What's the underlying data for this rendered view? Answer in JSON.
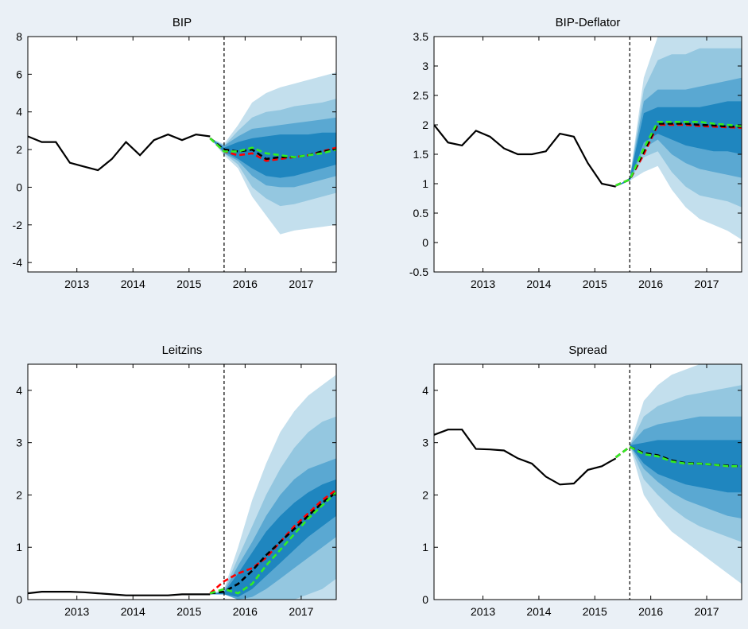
{
  "colors": {
    "fan_light": "#c3dfed",
    "fan_mid_light": "#94c7e0",
    "fan_mid": "#5aa8d2",
    "fan_dark": "#1f86bf",
    "fan_darkest": "#0b72b2",
    "history": "#000000",
    "median_red": "#ff0000",
    "median_green": "#33ee22",
    "median_black": "#000000",
    "plot_bg": "#ffffff",
    "figure_bg": "#eaf0f6"
  },
  "chart_data": [
    {
      "type": "line",
      "title": "BIP",
      "xlabel": "",
      "ylabel": "",
      "xlim": [
        2012.125,
        2017.625
      ],
      "ylim": [
        -4.5,
        8
      ],
      "yticks": [
        -4,
        -2,
        0,
        2,
        4,
        6,
        8
      ],
      "xticks": [
        2013,
        2014,
        2015,
        2016,
        2017
      ],
      "forecast_start": 2015.625,
      "history": {
        "x": [
          2012.125,
          2012.375,
          2012.625,
          2012.875,
          2013.125,
          2013.375,
          2013.625,
          2013.875,
          2014.125,
          2014.375,
          2014.625,
          2014.875,
          2015.125,
          2015.375
        ],
        "y": [
          2.7,
          2.4,
          2.4,
          1.3,
          1.1,
          0.9,
          1.5,
          2.4,
          1.7,
          2.5,
          2.8,
          2.5,
          2.8,
          2.7
        ]
      },
      "fan_x": [
        2015.375,
        2015.625,
        2015.875,
        2016.125,
        2016.375,
        2016.625,
        2016.875,
        2017.125,
        2017.375,
        2017.625
      ],
      "fan_bands": [
        {
          "lo": [
            2.6,
            1.7,
            1.0,
            -0.5,
            -1.5,
            -2.5,
            -2.3,
            -2.2,
            -2.1,
            -2.0
          ],
          "hi": [
            2.6,
            2.3,
            3.3,
            4.5,
            5.0,
            5.3,
            5.5,
            5.7,
            5.9,
            6.1
          ]
        },
        {
          "lo": [
            2.6,
            1.8,
            1.2,
            0.0,
            -0.6,
            -1.0,
            -0.9,
            -0.7,
            -0.5,
            -0.3
          ],
          "hi": [
            2.6,
            2.2,
            3.0,
            3.7,
            4.0,
            4.1,
            4.3,
            4.4,
            4.5,
            4.7
          ]
        },
        {
          "lo": [
            2.6,
            1.8,
            1.4,
            0.6,
            0.1,
            0.0,
            0.0,
            0.2,
            0.4,
            0.6
          ],
          "hi": [
            2.6,
            2.2,
            2.7,
            3.1,
            3.2,
            3.3,
            3.4,
            3.5,
            3.6,
            3.7
          ]
        },
        {
          "lo": [
            2.6,
            1.9,
            1.5,
            1.0,
            0.6,
            0.5,
            0.6,
            0.8,
            1.0,
            1.2
          ],
          "hi": [
            2.6,
            2.1,
            2.4,
            2.6,
            2.7,
            2.8,
            2.8,
            2.8,
            2.9,
            2.9
          ]
        }
      ],
      "lines": [
        {
          "color": "red",
          "x": [
            2015.375,
            2015.625,
            2015.875,
            2016.125,
            2016.375,
            2016.625,
            2016.875,
            2017.125,
            2017.375,
            2017.625
          ],
          "y": [
            2.6,
            1.9,
            1.7,
            1.8,
            1.4,
            1.5,
            1.6,
            1.7,
            1.9,
            2.1
          ]
        },
        {
          "color": "black",
          "x": [
            2015.375,
            2015.625,
            2015.875,
            2016.125,
            2016.375,
            2016.625,
            2016.875,
            2017.125,
            2017.375,
            2017.625
          ],
          "y": [
            2.6,
            2.0,
            1.9,
            2.0,
            1.5,
            1.6,
            1.6,
            1.7,
            1.9,
            2.0
          ]
        },
        {
          "color": "green",
          "x": [
            2015.375,
            2015.625,
            2015.875,
            2016.125,
            2016.375,
            2016.625,
            2016.875,
            2017.125,
            2017.375,
            2017.625
          ],
          "y": [
            2.6,
            1.9,
            1.9,
            2.1,
            1.8,
            1.7,
            1.6,
            1.7,
            1.8,
            2.0
          ]
        }
      ]
    },
    {
      "type": "line",
      "title": "BIP-Deflator",
      "xlabel": "",
      "ylabel": "",
      "xlim": [
        2012.125,
        2017.625
      ],
      "ylim": [
        -0.5,
        3.5
      ],
      "yticks": [
        -0.5,
        0,
        0.5,
        1,
        1.5,
        2,
        2.5,
        3,
        3.5
      ],
      "xticks": [
        2013,
        2014,
        2015,
        2016,
        2017
      ],
      "forecast_start": 2015.625,
      "history": {
        "x": [
          2012.125,
          2012.375,
          2012.625,
          2012.875,
          2013.125,
          2013.375,
          2013.625,
          2013.875,
          2014.125,
          2014.375,
          2014.625,
          2014.875,
          2015.125,
          2015.375
        ],
        "y": [
          2.0,
          1.7,
          1.65,
          1.9,
          1.8,
          1.6,
          1.5,
          1.5,
          1.55,
          1.85,
          1.8,
          1.35,
          1.0,
          0.95
        ]
      },
      "fan_x": [
        2015.375,
        2015.625,
        2015.875,
        2016.125,
        2016.375,
        2016.625,
        2016.875,
        2017.125,
        2017.375,
        2017.625
      ],
      "fan_bands": [
        {
          "lo": [
            0.95,
            1.05,
            1.2,
            1.3,
            0.9,
            0.6,
            0.4,
            0.3,
            0.2,
            0.05
          ],
          "hi": [
            0.95,
            1.1,
            2.8,
            3.5,
            3.5,
            3.5,
            3.5,
            3.5,
            3.5,
            3.5
          ]
        },
        {
          "lo": [
            0.95,
            1.05,
            1.45,
            1.55,
            1.2,
            0.95,
            0.8,
            0.75,
            0.7,
            0.6
          ],
          "hi": [
            0.95,
            1.1,
            2.6,
            3.1,
            3.2,
            3.2,
            3.3,
            3.3,
            3.3,
            3.3
          ]
        },
        {
          "lo": [
            0.95,
            1.05,
            1.6,
            1.75,
            1.5,
            1.35,
            1.25,
            1.2,
            1.15,
            1.1
          ],
          "hi": [
            0.95,
            1.1,
            2.4,
            2.6,
            2.6,
            2.6,
            2.65,
            2.7,
            2.75,
            2.8
          ]
        },
        {
          "lo": [
            0.95,
            1.05,
            1.7,
            1.85,
            1.75,
            1.65,
            1.6,
            1.55,
            1.55,
            1.5
          ],
          "hi": [
            0.95,
            1.1,
            2.2,
            2.3,
            2.3,
            2.3,
            2.3,
            2.35,
            2.4,
            2.4
          ]
        }
      ],
      "lines": [
        {
          "color": "red",
          "x": [
            2015.375,
            2015.625,
            2015.875,
            2016.125,
            2016.375,
            2016.625,
            2016.875,
            2017.125,
            2017.375,
            2017.625
          ],
          "y": [
            0.97,
            1.07,
            1.5,
            2.0,
            2.0,
            2.0,
            1.98,
            1.97,
            1.96,
            1.95
          ]
        },
        {
          "color": "black",
          "x": [
            2015.375,
            2015.625,
            2015.875,
            2016.125,
            2016.375,
            2016.625,
            2016.875,
            2017.125,
            2017.375,
            2017.625
          ],
          "y": [
            0.97,
            1.07,
            1.55,
            2.02,
            2.02,
            2.02,
            2.0,
            1.99,
            1.97,
            1.97
          ]
        },
        {
          "color": "green",
          "x": [
            2015.375,
            2015.625,
            2015.875,
            2016.125,
            2016.375,
            2016.625,
            2016.875,
            2017.125,
            2017.375,
            2017.625
          ],
          "y": [
            0.97,
            1.07,
            1.6,
            2.05,
            2.05,
            2.05,
            2.05,
            2.02,
            2.0,
            1.98
          ]
        }
      ]
    },
    {
      "type": "line",
      "title": "Leitzins",
      "xlabel": "",
      "ylabel": "",
      "xlim": [
        2012.125,
        2017.625
      ],
      "ylim": [
        0,
        4.5
      ],
      "yticks": [
        0,
        1,
        2,
        3,
        4
      ],
      "xticks": [
        2013,
        2014,
        2015,
        2016,
        2017
      ],
      "forecast_start": 2015.625,
      "history": {
        "x": [
          2012.125,
          2012.375,
          2012.625,
          2012.875,
          2013.125,
          2013.375,
          2013.625,
          2013.875,
          2014.125,
          2014.375,
          2014.625,
          2014.875,
          2015.125,
          2015.375
        ],
        "y": [
          0.12,
          0.15,
          0.15,
          0.15,
          0.14,
          0.12,
          0.1,
          0.08,
          0.08,
          0.08,
          0.08,
          0.1,
          0.1,
          0.1
        ]
      },
      "fan_x": [
        2015.375,
        2015.625,
        2015.875,
        2016.125,
        2016.375,
        2016.625,
        2016.875,
        2017.125,
        2017.375,
        2017.625
      ],
      "fan_bands": [
        {
          "lo": [
            0.1,
            0.1,
            0.0,
            0.0,
            0.0,
            0.0,
            0.0,
            0.0,
            0.0,
            0.0
          ],
          "hi": [
            0.1,
            0.2,
            1.0,
            1.9,
            2.6,
            3.2,
            3.6,
            3.9,
            4.1,
            4.3
          ]
        },
        {
          "lo": [
            0.1,
            0.1,
            0.0,
            0.0,
            0.0,
            0.0,
            0.0,
            0.1,
            0.2,
            0.4
          ],
          "hi": [
            0.1,
            0.18,
            0.8,
            1.4,
            2.0,
            2.5,
            2.9,
            3.2,
            3.4,
            3.5
          ]
        },
        {
          "lo": [
            0.1,
            0.1,
            0.0,
            0.05,
            0.2,
            0.4,
            0.6,
            0.8,
            1.0,
            1.2
          ],
          "hi": [
            0.1,
            0.16,
            0.65,
            1.1,
            1.6,
            2.0,
            2.3,
            2.5,
            2.6,
            2.7
          ]
        },
        {
          "lo": [
            0.1,
            0.1,
            0.05,
            0.2,
            0.45,
            0.7,
            0.95,
            1.2,
            1.4,
            1.6
          ],
          "hi": [
            0.1,
            0.14,
            0.5,
            0.9,
            1.3,
            1.6,
            1.85,
            2.05,
            2.2,
            2.3
          ]
        }
      ],
      "lines": [
        {
          "color": "red",
          "x": [
            2015.375,
            2015.625,
            2015.875,
            2016.125,
            2016.375,
            2016.625,
            2016.875,
            2017.125,
            2017.375,
            2017.625
          ],
          "y": [
            0.12,
            0.35,
            0.5,
            0.6,
            0.8,
            1.1,
            1.4,
            1.65,
            1.9,
            2.1
          ]
        },
        {
          "color": "black",
          "x": [
            2015.375,
            2015.625,
            2015.875,
            2016.125,
            2016.375,
            2016.625,
            2016.875,
            2017.125,
            2017.375,
            2017.625
          ],
          "y": [
            0.12,
            0.15,
            0.3,
            0.55,
            0.85,
            1.1,
            1.35,
            1.6,
            1.85,
            2.05
          ]
        },
        {
          "color": "green",
          "x": [
            2015.375,
            2015.625,
            2015.875,
            2016.125,
            2016.375,
            2016.625,
            2016.875,
            2017.125,
            2017.375,
            2017.625
          ],
          "y": [
            0.12,
            0.2,
            0.12,
            0.3,
            0.65,
            0.95,
            1.25,
            1.55,
            1.8,
            2.05
          ]
        }
      ]
    },
    {
      "type": "line",
      "title": "Spread",
      "xlabel": "",
      "ylabel": "",
      "xlim": [
        2012.125,
        2017.625
      ],
      "ylim": [
        0,
        4.5
      ],
      "yticks": [
        0,
        1,
        2,
        3,
        4
      ],
      "xticks": [
        2013,
        2014,
        2015,
        2016,
        2017
      ],
      "forecast_start": 2015.625,
      "history": {
        "x": [
          2012.125,
          2012.375,
          2012.625,
          2012.875,
          2013.125,
          2013.375,
          2013.625,
          2013.875,
          2014.125,
          2014.375,
          2014.625,
          2014.875,
          2015.125,
          2015.375
        ],
        "y": [
          3.15,
          3.25,
          3.25,
          2.88,
          2.87,
          2.85,
          2.7,
          2.6,
          2.35,
          2.2,
          2.22,
          2.48,
          2.55,
          2.7
        ]
      },
      "fan_x": [
        2015.375,
        2015.625,
        2015.875,
        2016.125,
        2016.375,
        2016.625,
        2016.875,
        2017.125,
        2017.375,
        2017.625
      ],
      "fan_bands": [
        {
          "lo": [
            2.72,
            2.95,
            2.0,
            1.6,
            1.3,
            1.1,
            0.9,
            0.7,
            0.5,
            0.3
          ],
          "hi": [
            2.72,
            2.95,
            3.8,
            4.1,
            4.3,
            4.4,
            4.5,
            4.5,
            4.5,
            4.5
          ]
        },
        {
          "lo": [
            2.72,
            2.95,
            2.3,
            2.0,
            1.75,
            1.55,
            1.4,
            1.3,
            1.2,
            1.1
          ],
          "hi": [
            2.72,
            2.95,
            3.5,
            3.7,
            3.8,
            3.9,
            3.95,
            4.0,
            4.05,
            4.1
          ]
        },
        {
          "lo": [
            2.72,
            2.95,
            2.5,
            2.25,
            2.05,
            1.9,
            1.8,
            1.7,
            1.6,
            1.55
          ],
          "hi": [
            2.72,
            2.95,
            3.25,
            3.35,
            3.4,
            3.45,
            3.5,
            3.5,
            3.5,
            3.5
          ]
        },
        {
          "lo": [
            2.72,
            2.95,
            2.6,
            2.4,
            2.3,
            2.2,
            2.15,
            2.1,
            2.05,
            2.05
          ],
          "hi": [
            2.72,
            2.95,
            3.0,
            3.05,
            3.05,
            3.05,
            3.05,
            3.05,
            3.05,
            3.05
          ]
        }
      ],
      "lines": [
        {
          "color": "red",
          "x": [
            2015.375,
            2015.625,
            2015.875,
            2016.125,
            2016.375,
            2016.625,
            2016.875,
            2017.125,
            2017.375,
            2017.625
          ],
          "y": [
            2.72,
            2.92,
            2.8,
            2.75,
            2.65,
            2.6,
            2.6,
            2.58,
            2.55,
            2.55
          ]
        },
        {
          "color": "black",
          "x": [
            2015.375,
            2015.625,
            2015.875,
            2016.125,
            2016.375,
            2016.625,
            2016.875,
            2017.125,
            2017.375,
            2017.625
          ],
          "y": [
            2.72,
            2.92,
            2.8,
            2.76,
            2.66,
            2.61,
            2.6,
            2.58,
            2.56,
            2.55
          ]
        },
        {
          "color": "green",
          "x": [
            2015.375,
            2015.625,
            2015.875,
            2016.125,
            2016.375,
            2016.625,
            2016.875,
            2017.125,
            2017.375,
            2017.625
          ],
          "y": [
            2.72,
            2.92,
            2.78,
            2.74,
            2.64,
            2.6,
            2.6,
            2.58,
            2.55,
            2.55
          ]
        }
      ]
    }
  ]
}
